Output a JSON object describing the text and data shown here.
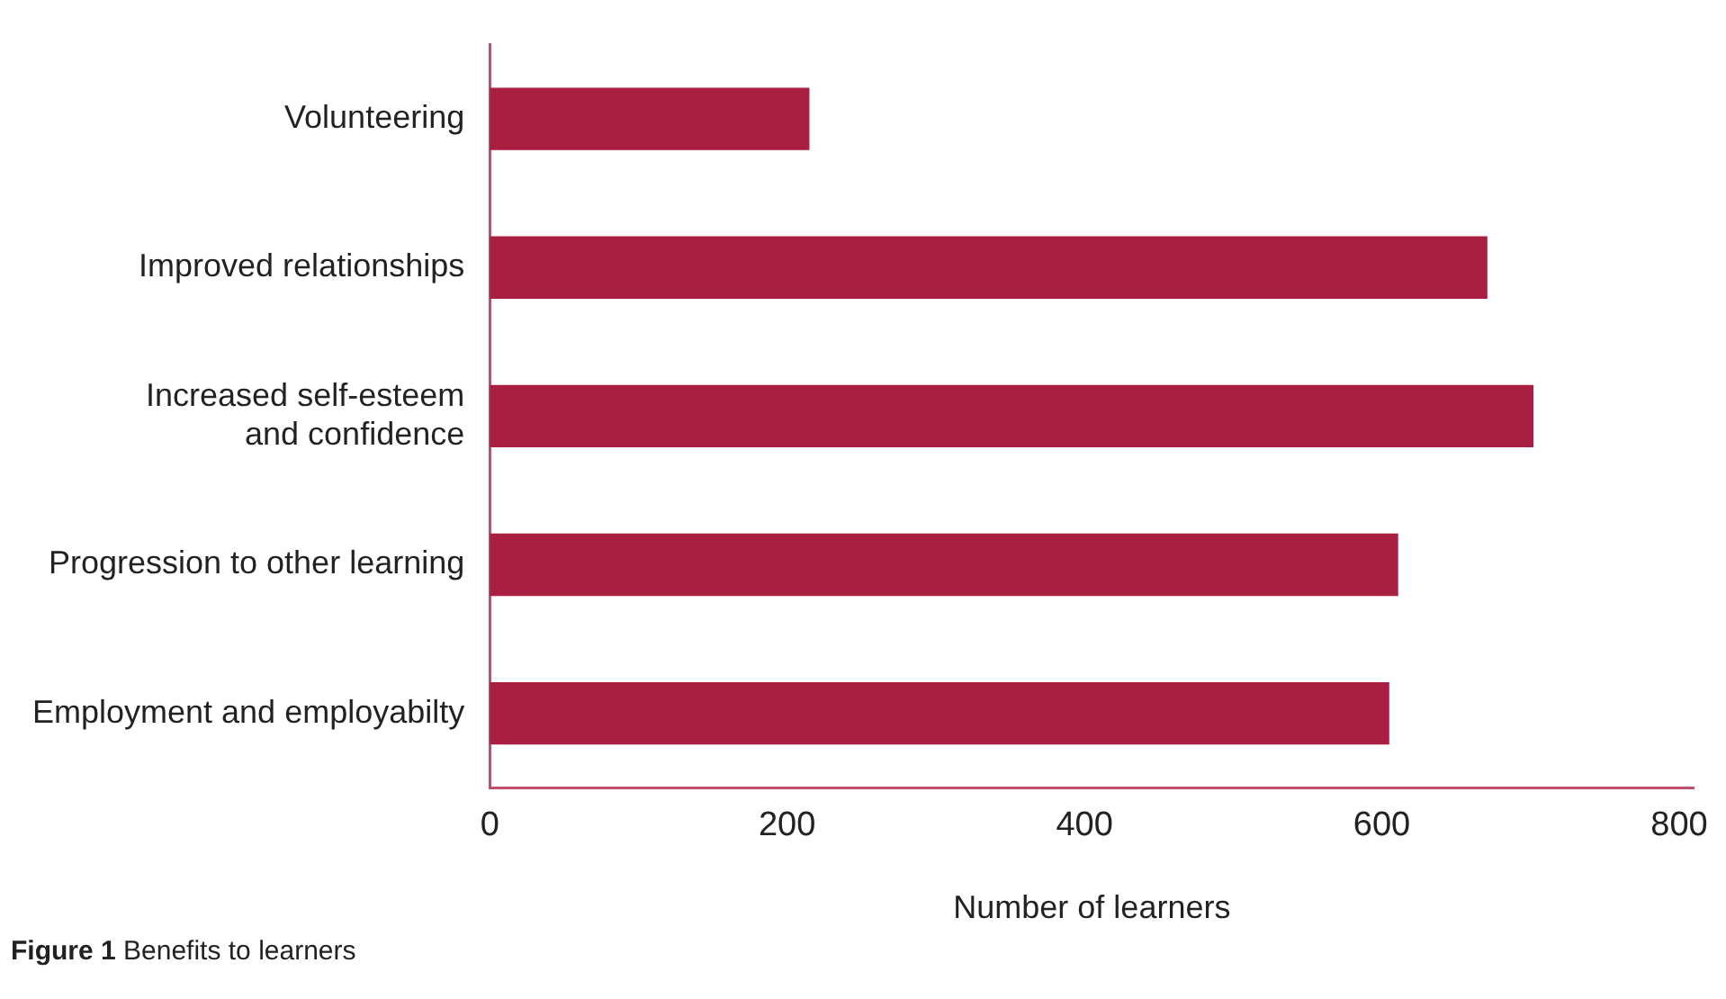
{
  "chart_data": {
    "type": "bar",
    "orientation": "horizontal",
    "categories": [
      "Volunteering",
      "Improved relationships",
      "Increased self-esteem\nand confidence",
      "Progression to other learning",
      "Employment and employabilty"
    ],
    "values": [
      215,
      671,
      702,
      611,
      605
    ],
    "color": "#a91f41",
    "xlim": [
      0,
      810
    ],
    "xticks": [
      0,
      200,
      400,
      600,
      800
    ],
    "xlabel": "Number of learners",
    "annotations": [
      "Figure 1 Benefits to learners"
    ],
    "grid": false,
    "legend": false
  }
}
